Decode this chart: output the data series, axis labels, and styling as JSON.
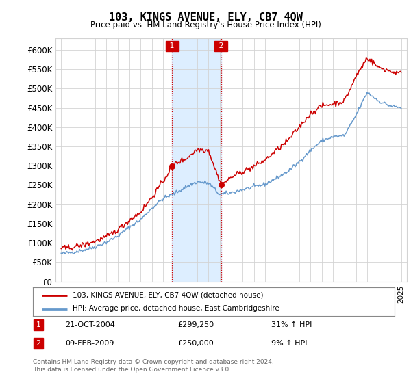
{
  "title": "103, KINGS AVENUE, ELY, CB7 4QW",
  "subtitle": "Price paid vs. HM Land Registry's House Price Index (HPI)",
  "legend_line1": "103, KINGS AVENUE, ELY, CB7 4QW (detached house)",
  "legend_line2": "HPI: Average price, detached house, East Cambridgeshire",
  "annotation1_date": "21-OCT-2004",
  "annotation1_price": "£299,250",
  "annotation1_hpi": "31% ↑ HPI",
  "annotation2_date": "09-FEB-2009",
  "annotation2_price": "£250,000",
  "annotation2_hpi": "9% ↑ HPI",
  "footnote": "Contains HM Land Registry data © Crown copyright and database right 2024.\nThis data is licensed under the Open Government Licence v3.0.",
  "red_color": "#cc0000",
  "blue_color": "#6699cc",
  "shade_color": "#ddeeff",
  "annotation_box_color": "#cc0000",
  "ylim_min": 0,
  "ylim_max": 630000,
  "yticks": [
    0,
    50000,
    100000,
    150000,
    200000,
    250000,
    300000,
    350000,
    400000,
    450000,
    500000,
    550000,
    600000
  ],
  "sale1_x": 2004.8,
  "sale1_y": 299250,
  "sale2_x": 2009.1,
  "sale2_y": 250000,
  "xmin": 1994.5,
  "xmax": 2025.5
}
